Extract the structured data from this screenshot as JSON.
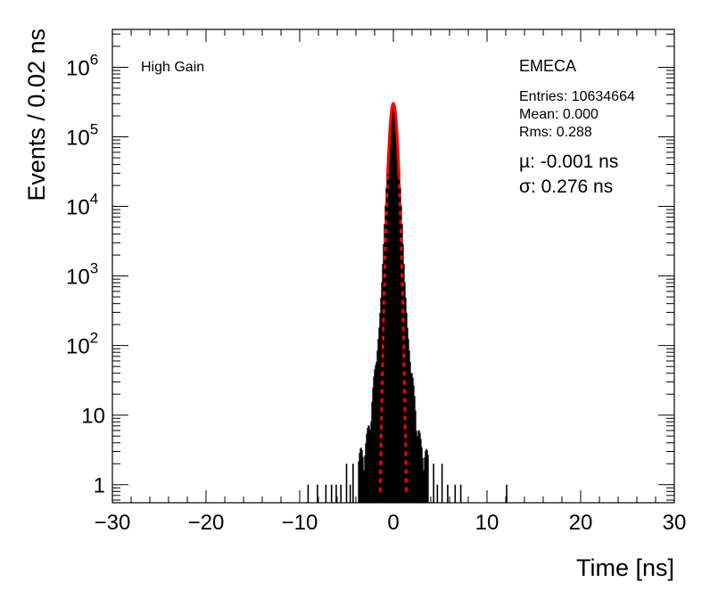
{
  "chart_data": {
    "type": "histogram",
    "xlabel": "Time [ns]",
    "ylabel": "Events / 0.02 ns",
    "xlim": [
      -30,
      30
    ],
    "ylim": [
      0.55,
      3500000
    ],
    "y_scale": "log",
    "x_ticks": [
      {
        "value": -30,
        "label": "−30"
      },
      {
        "value": -20,
        "label": "−20"
      },
      {
        "value": -10,
        "label": "−10"
      },
      {
        "value": 0,
        "label": "0"
      },
      {
        "value": 10,
        "label": "10"
      },
      {
        "value": 20,
        "label": "20"
      },
      {
        "value": 30,
        "label": "30"
      }
    ],
    "y_ticks": [
      {
        "value": 1,
        "base": "1",
        "exp": ""
      },
      {
        "value": 10,
        "base": "10",
        "exp": ""
      },
      {
        "value": 100,
        "base": "10",
        "exp": "2"
      },
      {
        "value": 1000,
        "base": "10",
        "exp": "3"
      },
      {
        "value": 10000,
        "base": "10",
        "exp": "4"
      },
      {
        "value": 100000,
        "base": "10",
        "exp": "5"
      },
      {
        "value": 1000000,
        "base": "10",
        "exp": "6"
      }
    ],
    "histogram": {
      "color": "#000000",
      "peak_counts": 300000,
      "core_sigma": 0.276,
      "envelope_points": [
        {
          "x": -3.8,
          "y": 2
        },
        {
          "x": -3.0,
          "y": 3
        },
        {
          "x": -2.6,
          "y": 6
        },
        {
          "x": -2.2,
          "y": 18
        },
        {
          "x": -1.8,
          "y": 60
        },
        {
          "x": -1.5,
          "y": 200
        },
        {
          "x": -1.2,
          "y": 1000
        },
        {
          "x": -0.9,
          "y": 8000
        },
        {
          "x": -0.6,
          "y": 50000
        },
        {
          "x": -0.3,
          "y": 200000
        },
        {
          "x": 0.0,
          "y": 300000
        },
        {
          "x": 0.3,
          "y": 200000
        },
        {
          "x": 0.6,
          "y": 50000
        },
        {
          "x": 0.9,
          "y": 8000
        },
        {
          "x": 1.2,
          "y": 1000
        },
        {
          "x": 1.5,
          "y": 200
        },
        {
          "x": 1.8,
          "y": 60
        },
        {
          "x": 2.2,
          "y": 18
        },
        {
          "x": 2.6,
          "y": 6
        },
        {
          "x": 3.0,
          "y": 3
        },
        {
          "x": 3.8,
          "y": 2
        }
      ],
      "sparse_spikes": [
        {
          "x": -9.1,
          "y": 1
        },
        {
          "x": -8.1,
          "y": 1
        },
        {
          "x": -7.2,
          "y": 1
        },
        {
          "x": -6.6,
          "y": 1
        },
        {
          "x": -6.1,
          "y": 1
        },
        {
          "x": -5.6,
          "y": 1
        },
        {
          "x": -5.0,
          "y": 2
        },
        {
          "x": -4.6,
          "y": 1
        },
        {
          "x": -4.3,
          "y": 2
        },
        {
          "x": 4.3,
          "y": 2
        },
        {
          "x": 4.7,
          "y": 1
        },
        {
          "x": 5.2,
          "y": 2
        },
        {
          "x": 5.8,
          "y": 1
        },
        {
          "x": 6.6,
          "y": 1
        },
        {
          "x": 7.2,
          "y": 1
        },
        {
          "x": 12.1,
          "y": 1
        }
      ]
    },
    "fit": {
      "function": "gaussian",
      "color": "#ff0000",
      "amplitude": 300000,
      "mu": -0.001,
      "sigma": 0.276,
      "solid_range": [
        -0.6,
        0.6
      ],
      "dashed_range": [
        -1.4,
        1.4
      ]
    },
    "annotations": {
      "gain_label": "High Gain",
      "region_label": "EMECA",
      "entries": "Entries: 10634664",
      "mean": "Mean: 0.000",
      "rms": "Rms: 0.288",
      "mu": "µ: -0.001 ns",
      "sigma": "σ: 0.276 ns"
    }
  }
}
